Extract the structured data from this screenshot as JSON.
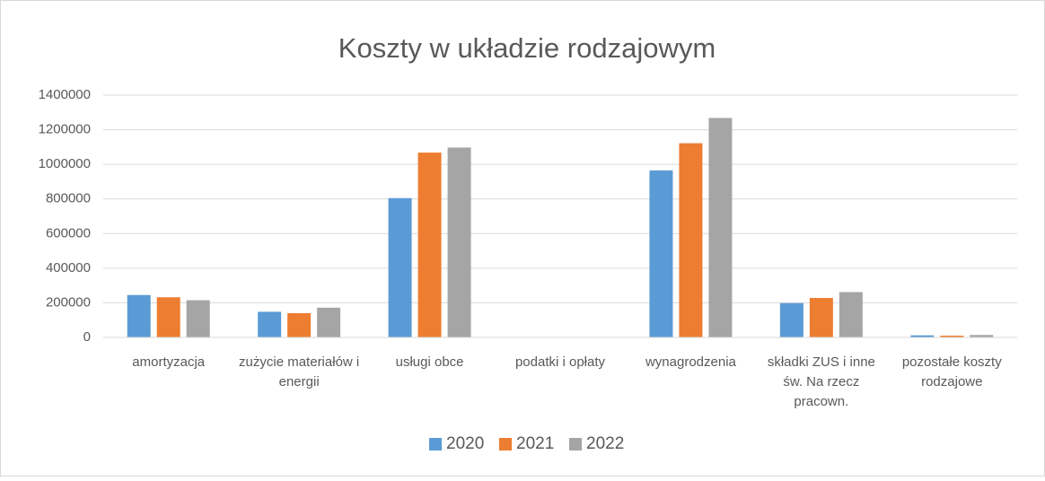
{
  "chart_data": {
    "type": "bar",
    "title": "Koszty w układzie rodzajowym",
    "categories": [
      "amortyzacja",
      "zużycie materiałów i energii",
      "usługi obce",
      "podatki i opłaty",
      "wynagrodzenia",
      "składki ZUS i inne św. Na rzecz pracown.",
      "pozostałe koszty rodzajowe"
    ],
    "series": [
      {
        "name": "2020",
        "color": "#5b9bd5",
        "values": [
          245000,
          148000,
          805000,
          0,
          965000,
          198000,
          12000
        ]
      },
      {
        "name": "2021",
        "color": "#ed7d31",
        "values": [
          232000,
          140000,
          1068000,
          0,
          1122000,
          228000,
          10000
        ]
      },
      {
        "name": "2022",
        "color": "#a5a5a5",
        "values": [
          215000,
          172000,
          1097000,
          0,
          1268000,
          262000,
          14000
        ]
      }
    ],
    "ylim": [
      0,
      1400000
    ],
    "yticks": [
      0,
      200000,
      400000,
      600000,
      800000,
      1000000,
      1200000,
      1400000
    ],
    "grid": true,
    "legend": "bottom"
  }
}
